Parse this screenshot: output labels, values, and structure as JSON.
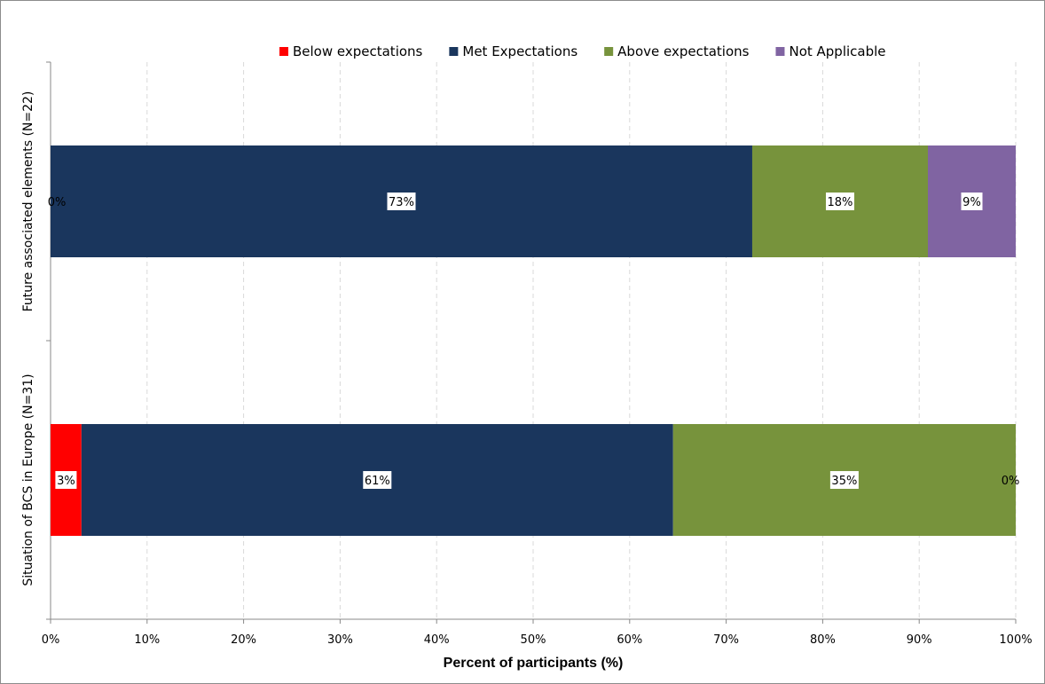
{
  "chart_data": {
    "type": "bar",
    "orientation": "horizontal",
    "stacked": true,
    "title": "",
    "xlabel": "Percent of participants (%)",
    "ylabel": "",
    "xlim": [
      0,
      100
    ],
    "x_ticks": [
      "0%",
      "10%",
      "20%",
      "30%",
      "40%",
      "50%",
      "60%",
      "70%",
      "80%",
      "90%",
      "100%"
    ],
    "grid": "vertical dashed",
    "legend_position": "top",
    "categories": [
      "Future associated elements (N=22)",
      "Situation of BCS in Europe (N=31)"
    ],
    "series": [
      {
        "name": "Below expectations",
        "color": "#ff0000",
        "values": [
          0,
          3.2
        ],
        "labels": [
          "0%",
          "3%"
        ]
      },
      {
        "name": "Met Expectations",
        "color": "#1a365d",
        "values": [
          72.7,
          61.3
        ],
        "labels": [
          "73%",
          "61%"
        ]
      },
      {
        "name": "Above expectations",
        "color": "#77933c",
        "values": [
          18.2,
          35.5
        ],
        "labels": [
          "18%",
          "35%"
        ]
      },
      {
        "name": "Not Applicable",
        "color": "#8064a2",
        "values": [
          9.1,
          0
        ],
        "labels": [
          "9%",
          "0%"
        ]
      }
    ]
  }
}
